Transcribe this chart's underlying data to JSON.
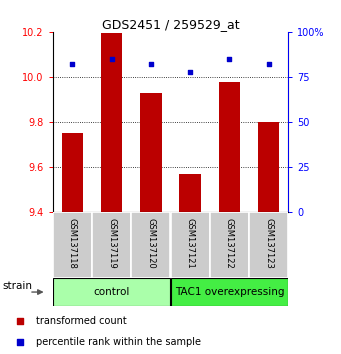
{
  "title": "GDS2451 / 259529_at",
  "samples": [
    "GSM137118",
    "GSM137119",
    "GSM137120",
    "GSM137121",
    "GSM137122",
    "GSM137123"
  ],
  "red_values": [
    9.75,
    10.195,
    9.93,
    9.57,
    9.98,
    9.8
  ],
  "blue_values": [
    82,
    85,
    82,
    78,
    85,
    82
  ],
  "ylim_left": [
    9.4,
    10.2
  ],
  "ylim_right": [
    0,
    100
  ],
  "yticks_left": [
    9.4,
    9.6,
    9.8,
    10.0,
    10.2
  ],
  "yticks_right": [
    0,
    25,
    50,
    75,
    100
  ],
  "ytick_labels_right": [
    "0",
    "25",
    "50",
    "75",
    "100%"
  ],
  "groups": [
    {
      "label": "control",
      "color": "#aaffaa"
    },
    {
      "label": "TAC1 overexpressing",
      "color": "#44ee44"
    }
  ],
  "bar_color": "#bb0000",
  "dot_color": "#0000cc",
  "bar_bottom": 9.4,
  "legend_red": "transformed count",
  "legend_blue": "percentile rank within the sample",
  "strain_label": "strain",
  "plot_bg_color": "#ffffff",
  "sample_bg_color": "#cccccc",
  "grid_yticks": [
    9.6,
    9.8,
    10.0
  ]
}
